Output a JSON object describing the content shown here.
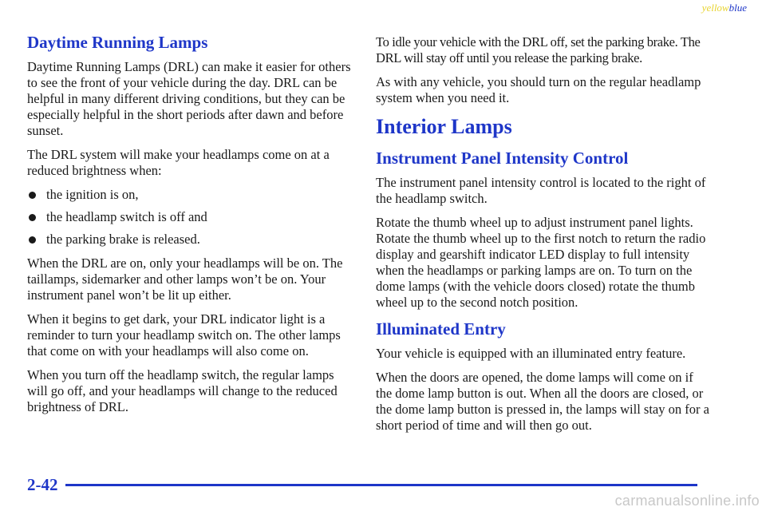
{
  "header": {
    "tag_yellow": "yellow",
    "tag_blue": "blue"
  },
  "left_column": {
    "heading": "Daytime Running Lamps",
    "intro": "Daytime Running Lamps (DRL) can make it easier for others to see the front of your vehicle during the day. DRL can be helpful in many different driving conditions, but they can be especially helpful in the short periods after dawn and before sunset.",
    "conditions_lead": "The DRL system will make your headlamps come on at a reduced brightness when:",
    "bullets": [
      "the ignition is on,",
      "the headlamp switch is off and",
      "the parking brake is released."
    ],
    "para_on": "When the DRL are on, only your headlamps will be on. The taillamps, sidemarker and other lamps won’t be on. Your instrument panel won’t be lit up either.",
    "para_dark": "When it begins to get dark, your DRL indicator light is a reminder to turn your headlamp switch on. The other lamps that come on with your headlamps will also come on.",
    "para_off": "When you turn off the headlamp switch, the regular lamps will go off, and your headlamps will change to the reduced brightness of DRL."
  },
  "right_column": {
    "para_idle": "To idle your vehicle with the DRL off, set the parking brake. The DRL will stay off until you release the parking brake.",
    "para_regular": "As with any vehicle, you should turn on the regular headlamp system when you need it.",
    "section_title": "Interior Lamps",
    "ipic_heading": "Instrument Panel Intensity Control",
    "ipic_para1": "The instrument panel intensity control is located to the right of the headlamp switch.",
    "ipic_para2": "Rotate the thumb wheel up to adjust instrument panel lights. Rotate the thumb wheel up to the first notch to return the radio display and gearshift indicator LED display to full intensity when the headlamps or parking lamps are on. To turn on the dome lamps (with the vehicle doors closed) rotate the thumb wheel up to the second notch position.",
    "entry_heading": "Illuminated Entry",
    "entry_para1": "Your vehicle is equipped with an illuminated entry feature.",
    "entry_para2": "When the doors are opened, the dome lamps will come on if the dome lamp button is out. When all the doors are closed, or the dome lamp button is pressed in, the lamps will stay on for a short period of time and will then go out."
  },
  "footer": {
    "page_number": "2-42",
    "watermark": "carmanualsonline.info"
  },
  "colors": {
    "accent": "#1e36c8",
    "tag_yellow": "#e8d430",
    "text": "#1a1a1a"
  }
}
